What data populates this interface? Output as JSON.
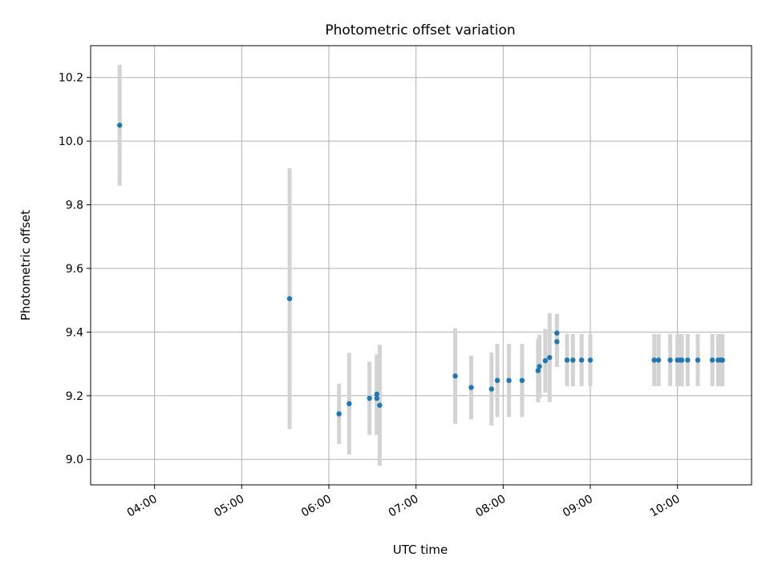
{
  "chart_data": {
    "type": "scatter",
    "title": "Photometric offset variation",
    "xlabel": "UTC time",
    "ylabel": "Photometric offset",
    "x_is_time": true,
    "xlim": [
      "03:16",
      "10:51"
    ],
    "ylim": [
      8.92,
      10.3
    ],
    "x_ticks": [
      "04:00",
      "05:00",
      "06:00",
      "07:00",
      "08:00",
      "09:00",
      "10:00"
    ],
    "y_ticks": [
      "9.0",
      "9.2",
      "9.4",
      "9.6",
      "9.8",
      "10.0",
      "10.2"
    ],
    "grid": true,
    "legend": "none",
    "colors": {
      "point": "#1f77b4",
      "errorbar": "#d3d3d3",
      "grid": "#b0b0b0"
    },
    "points": [
      {
        "x": "03:36",
        "y": 10.05,
        "err": 0.19
      },
      {
        "x": "05:33",
        "y": 9.505,
        "err": 0.41
      },
      {
        "x": "06:07",
        "y": 9.143,
        "err": 0.095
      },
      {
        "x": "06:14",
        "y": 9.175,
        "err": 0.16
      },
      {
        "x": "06:28",
        "y": 9.192,
        "err": 0.115
      },
      {
        "x": "06:33",
        "y": 9.192,
        "err": 0.115
      },
      {
        "x": "06:33",
        "y": 9.205,
        "err": 0.125
      },
      {
        "x": "06:35",
        "y": 9.17,
        "err": 0.19
      },
      {
        "x": "07:27",
        "y": 9.262,
        "err": 0.15
      },
      {
        "x": "07:38",
        "y": 9.226,
        "err": 0.1
      },
      {
        "x": "07:52",
        "y": 9.221,
        "err": 0.115
      },
      {
        "x": "07:56",
        "y": 9.248,
        "err": 0.115
      },
      {
        "x": "08:04",
        "y": 9.248,
        "err": 0.115
      },
      {
        "x": "08:13",
        "y": 9.248,
        "err": 0.115
      },
      {
        "x": "08:24",
        "y": 9.279,
        "err": 0.1
      },
      {
        "x": "08:25",
        "y": 9.292,
        "err": 0.1
      },
      {
        "x": "08:29",
        "y": 9.31,
        "err": 0.1
      },
      {
        "x": "08:32",
        "y": 9.32,
        "err": 0.14
      },
      {
        "x": "08:37",
        "y": 9.37,
        "err": 0.08
      },
      {
        "x": "08:37",
        "y": 9.397,
        "err": 0.06
      },
      {
        "x": "08:44",
        "y": 9.312,
        "err": 0.082
      },
      {
        "x": "08:48",
        "y": 9.312,
        "err": 0.082
      },
      {
        "x": "08:54",
        "y": 9.312,
        "err": 0.082
      },
      {
        "x": "09:00",
        "y": 9.312,
        "err": 0.082
      },
      {
        "x": "09:44",
        "y": 9.312,
        "err": 0.082
      },
      {
        "x": "09:47",
        "y": 9.312,
        "err": 0.082
      },
      {
        "x": "09:55",
        "y": 9.312,
        "err": 0.082
      },
      {
        "x": "10:00",
        "y": 9.312,
        "err": 0.082
      },
      {
        "x": "10:02",
        "y": 9.312,
        "err": 0.082
      },
      {
        "x": "10:03",
        "y": 9.312,
        "err": 0.082
      },
      {
        "x": "10:07",
        "y": 9.312,
        "err": 0.082
      },
      {
        "x": "10:14",
        "y": 9.312,
        "err": 0.082
      },
      {
        "x": "10:24",
        "y": 9.312,
        "err": 0.082
      },
      {
        "x": "10:28",
        "y": 9.312,
        "err": 0.082
      },
      {
        "x": "10:30",
        "y": 9.312,
        "err": 0.082
      },
      {
        "x": "10:31",
        "y": 9.312,
        "err": 0.082
      }
    ]
  }
}
